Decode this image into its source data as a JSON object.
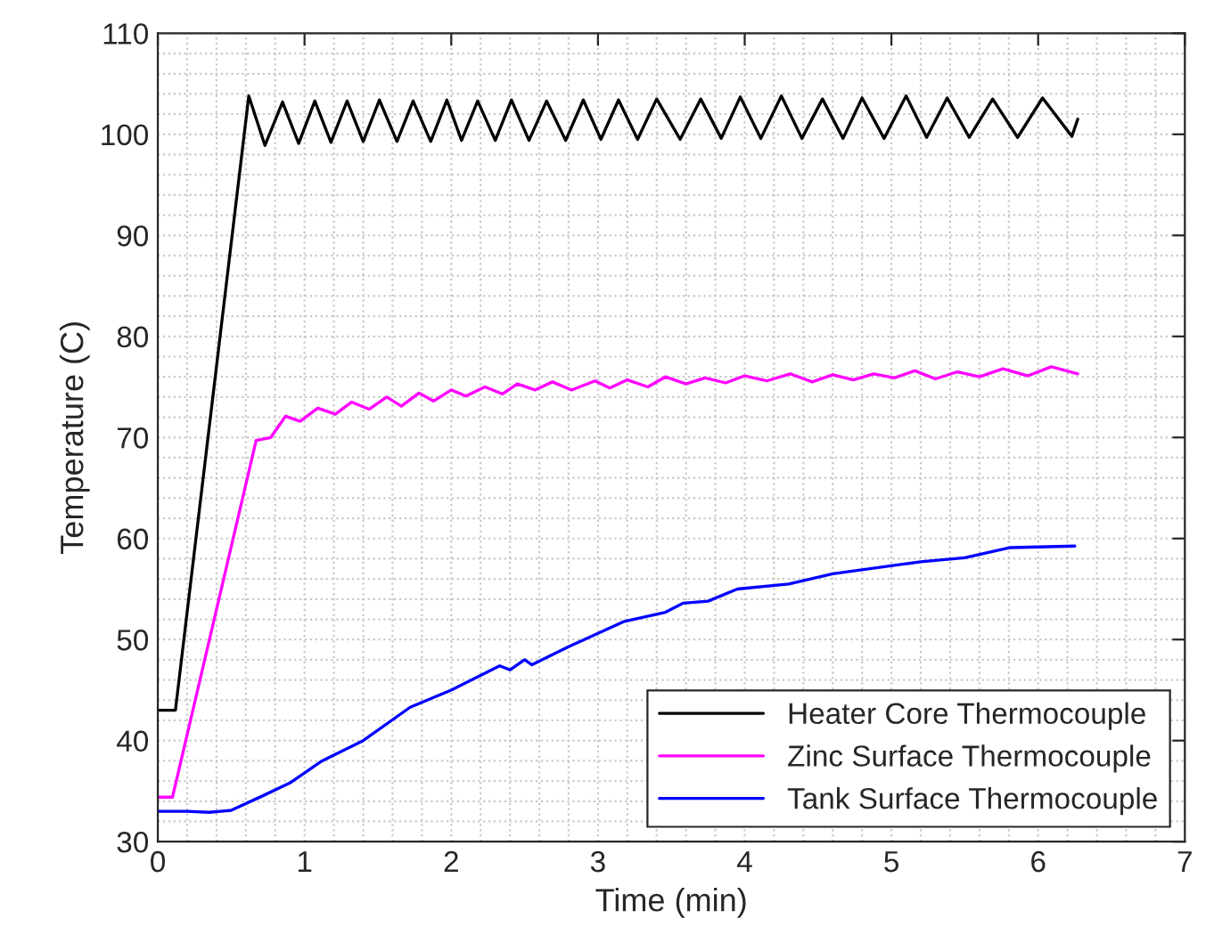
{
  "chart_data": {
    "type": "line",
    "xlabel": "Time (min)",
    "ylabel": "Temperature (C)",
    "xlim": [
      0,
      7
    ],
    "xticks": [
      0,
      1,
      2,
      3,
      4,
      5,
      6,
      7
    ],
    "ylim": [
      30,
      110
    ],
    "yticks": [
      30,
      40,
      50,
      60,
      70,
      80,
      90,
      100,
      110
    ],
    "grid": true,
    "legend": "bottom right",
    "line_style": "solid",
    "marker": "none",
    "series": [
      {
        "name": "Heater Core Thermocouple",
        "color": "#000000",
        "x": [
          0,
          0.12,
          0.62,
          0.73,
          0.85,
          0.96,
          1.07,
          1.18,
          1.29,
          1.4,
          1.51,
          1.63,
          1.74,
          1.86,
          1.97,
          2.07,
          2.18,
          2.3,
          2.41,
          2.53,
          2.65,
          2.78,
          2.9,
          3.02,
          3.14,
          3.27,
          3.4,
          3.56,
          3.7,
          3.84,
          3.97,
          4.11,
          4.25,
          4.39,
          4.53,
          4.67,
          4.8,
          4.95,
          5.1,
          5.24,
          5.38,
          5.53,
          5.69,
          5.86,
          6.03,
          6.23,
          6.27
        ],
        "values": [
          43,
          43,
          103.8,
          98.9,
          103.2,
          99.1,
          103.3,
          99.2,
          103.3,
          99.3,
          103.4,
          99.3,
          103.3,
          99.3,
          103.4,
          99.4,
          103.3,
          99.4,
          103.4,
          99.4,
          103.3,
          99.4,
          103.4,
          99.5,
          103.4,
          99.5,
          103.5,
          99.5,
          103.5,
          99.6,
          103.7,
          99.6,
          103.8,
          99.6,
          103.5,
          99.6,
          103.6,
          99.6,
          103.8,
          99.7,
          103.6,
          99.7,
          103.5,
          99.7,
          103.6,
          99.8,
          101.5
        ]
      },
      {
        "name": "Zinc Surface Thermocouple",
        "color": "#ff00ff",
        "x": [
          0,
          0.1,
          0.67,
          0.77,
          0.87,
          0.97,
          1.09,
          1.21,
          1.32,
          1.44,
          1.56,
          1.66,
          1.78,
          1.88,
          2.0,
          2.1,
          2.23,
          2.35,
          2.45,
          2.57,
          2.69,
          2.82,
          2.98,
          3.08,
          3.2,
          3.34,
          3.46,
          3.6,
          3.73,
          3.87,
          4.0,
          4.15,
          4.31,
          4.46,
          4.6,
          4.74,
          4.88,
          5.02,
          5.16,
          5.3,
          5.45,
          5.6,
          5.76,
          5.93,
          6.09,
          6.27
        ],
        "values": [
          34.4,
          34.4,
          69.7,
          70,
          72.1,
          71.6,
          72.9,
          72.3,
          73.5,
          72.8,
          74.0,
          73.1,
          74.4,
          73.6,
          74.7,
          74.1,
          75.0,
          74.3,
          75.3,
          74.7,
          75.5,
          74.7,
          75.6,
          74.9,
          75.7,
          75.0,
          76.0,
          75.3,
          75.9,
          75.4,
          76.1,
          75.6,
          76.3,
          75.5,
          76.2,
          75.7,
          76.3,
          75.9,
          76.6,
          75.8,
          76.5,
          76.0,
          76.8,
          76.1,
          77.0,
          76.3
        ]
      },
      {
        "name": "Tank Surface Thermocouple",
        "color": "#0000ff",
        "x": [
          0,
          0.2,
          0.35,
          0.5,
          0.71,
          0.9,
          1.12,
          1.4,
          1.72,
          2.0,
          2.33,
          2.4,
          2.5,
          2.55,
          2.8,
          3.18,
          3.46,
          3.58,
          3.75,
          3.95,
          4.3,
          4.6,
          5.2,
          5.5,
          5.81,
          6.25
        ],
        "values": [
          33,
          33,
          32.9,
          33.1,
          34.5,
          35.8,
          38,
          40,
          43.3,
          45,
          47.4,
          47.0,
          48,
          47.5,
          49.3,
          51.8,
          52.7,
          53.6,
          53.8,
          55.0,
          55.5,
          56.5,
          57.7,
          58.1,
          59.1,
          59.25
        ]
      }
    ]
  }
}
